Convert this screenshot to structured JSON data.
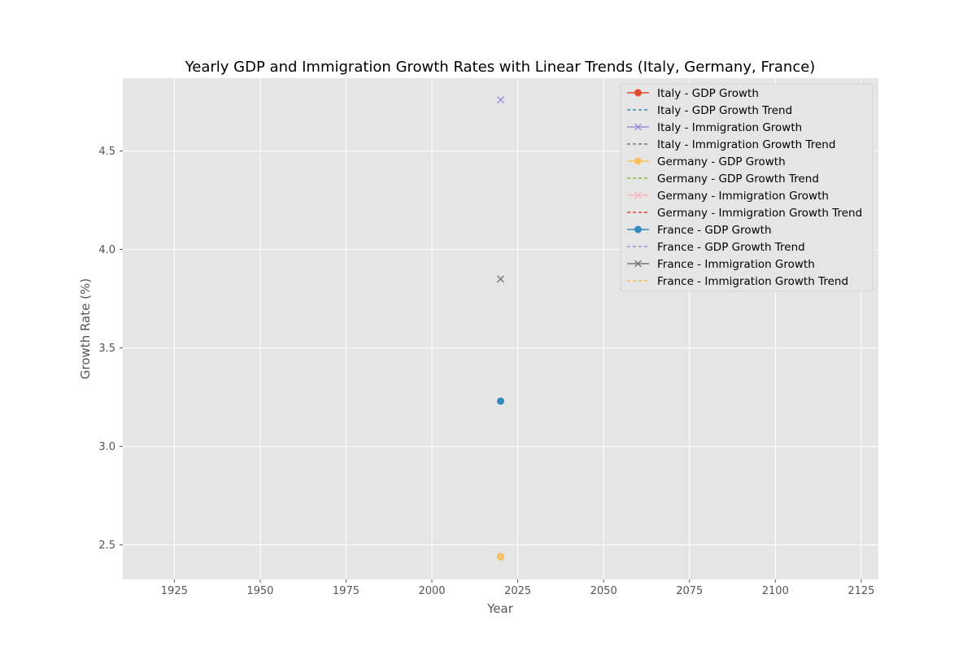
{
  "chart_data": {
    "type": "line",
    "title": "Yearly GDP and Immigration Growth Rates with Linear Trends (Italy, Germany, France)",
    "xlabel": "Year",
    "ylabel": "Growth Rate (%)",
    "xlim": [
      1910,
      2130
    ],
    "ylim": [
      2.325,
      4.87
    ],
    "xticks": [
      1925,
      1950,
      1975,
      2000,
      2025,
      2050,
      2075,
      2100,
      2125
    ],
    "yticks": [
      2.5,
      3.0,
      3.5,
      4.0,
      4.5
    ],
    "grid": true,
    "legend_position": "top-right",
    "series": [
      {
        "name": "Italy - GDP Growth",
        "color": "#E24A33",
        "style": "solid",
        "marker": "circle",
        "x": [
          2020
        ],
        "y": [
          2.44
        ]
      },
      {
        "name": "Italy - GDP Growth Trend",
        "color": "#348ABD",
        "style": "dashed",
        "marker": "none",
        "x": [
          2020
        ],
        "y": [
          2.44
        ]
      },
      {
        "name": "Italy - Immigration Growth",
        "color": "#988ED5",
        "style": "solid",
        "marker": "x",
        "x": [
          2020
        ],
        "y": [
          4.76
        ]
      },
      {
        "name": "Italy - Immigration Growth Trend",
        "color": "#777777",
        "style": "dashed",
        "marker": "none",
        "x": [
          2020
        ],
        "y": [
          4.76
        ]
      },
      {
        "name": "Germany - GDP Growth",
        "color": "#FBC15E",
        "style": "solid",
        "marker": "circle",
        "x": [
          2020
        ],
        "y": [
          2.44
        ]
      },
      {
        "name": "Germany - GDP Growth Trend",
        "color": "#8EBA42",
        "style": "dashed",
        "marker": "none",
        "x": [
          2020
        ],
        "y": [
          2.44
        ]
      },
      {
        "name": "Germany - Immigration Growth",
        "color": "#FFB5B8",
        "style": "solid",
        "marker": "x",
        "x": [
          2020
        ],
        "y": [
          3.85
        ]
      },
      {
        "name": "Germany - Immigration Growth Trend",
        "color": "#E24A33",
        "style": "dashed",
        "marker": "none",
        "x": [
          2020
        ],
        "y": [
          3.85
        ]
      },
      {
        "name": "France - GDP Growth",
        "color": "#348ABD",
        "style": "solid",
        "marker": "circle",
        "x": [
          2020
        ],
        "y": [
          3.23
        ]
      },
      {
        "name": "France - GDP Growth Trend",
        "color": "#988ED5",
        "style": "dashed",
        "marker": "none",
        "x": [
          2020
        ],
        "y": [
          3.23
        ]
      },
      {
        "name": "France - Immigration Growth",
        "color": "#777777",
        "style": "solid",
        "marker": "x",
        "x": [
          2020
        ],
        "y": [
          3.85
        ]
      },
      {
        "name": "France - Immigration Growth Trend",
        "color": "#FBC15E",
        "style": "dashed",
        "marker": "none",
        "x": [
          2020
        ],
        "y": [
          3.85
        ]
      }
    ]
  }
}
